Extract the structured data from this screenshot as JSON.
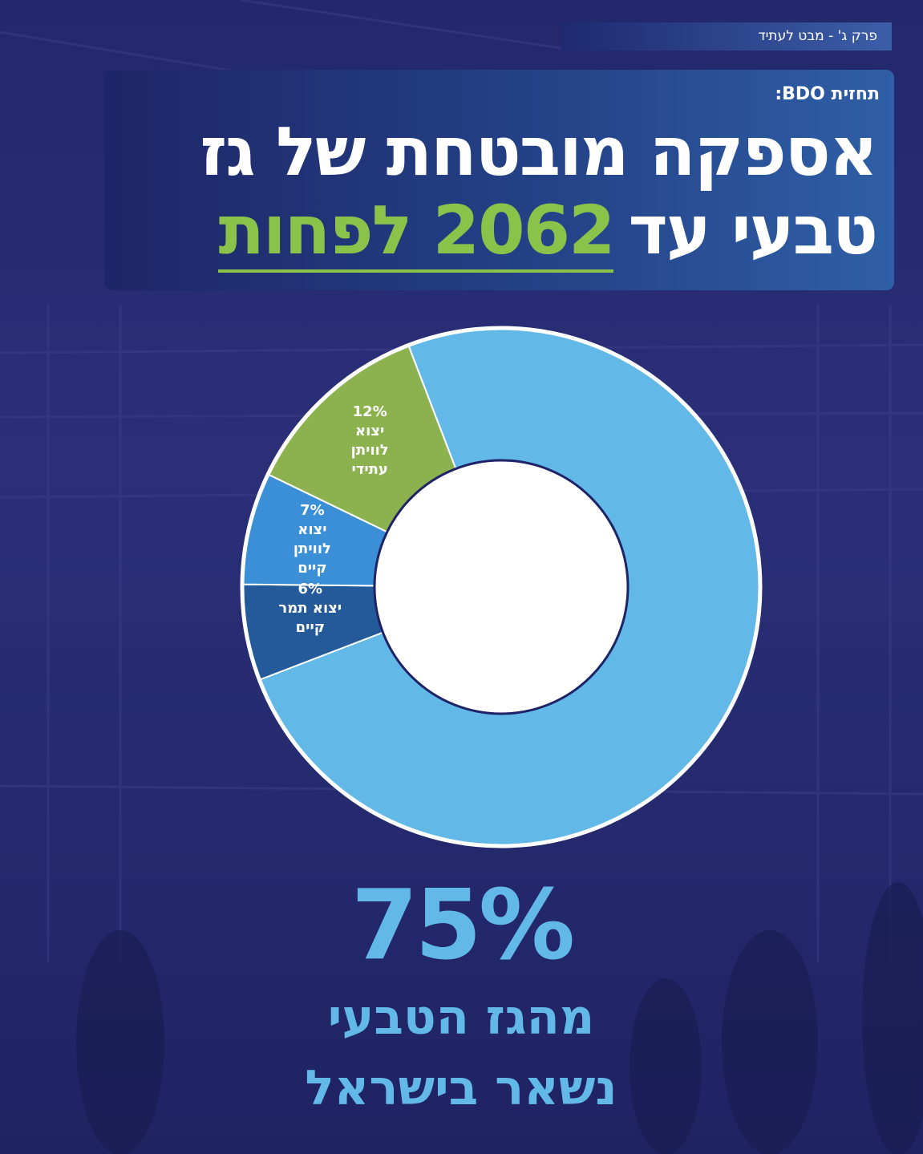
{
  "header": {
    "section": "פרק ג' - מבט לעתיד",
    "label": "תחזית BDO:",
    "title_lines": [
      "אספקה מובטחת של גז",
      "טבעי עד"
    ],
    "title_highlight": "2062 לפחות"
  },
  "chart_data": {
    "type": "donut",
    "categories": [
      "מהגז הטבעי נשאר בישראל",
      "יצוא תמר קיים",
      "יצוא לוויתן קיים",
      "יצוא לוויתן עתידי"
    ],
    "values": [
      75,
      6,
      7,
      12
    ],
    "value_labels": [
      "75%",
      "6%",
      "7%",
      "12%"
    ],
    "colors": [
      "#62b9e8",
      "#255a9a",
      "#3a8fd6",
      "#8bb24f"
    ]
  }
}
